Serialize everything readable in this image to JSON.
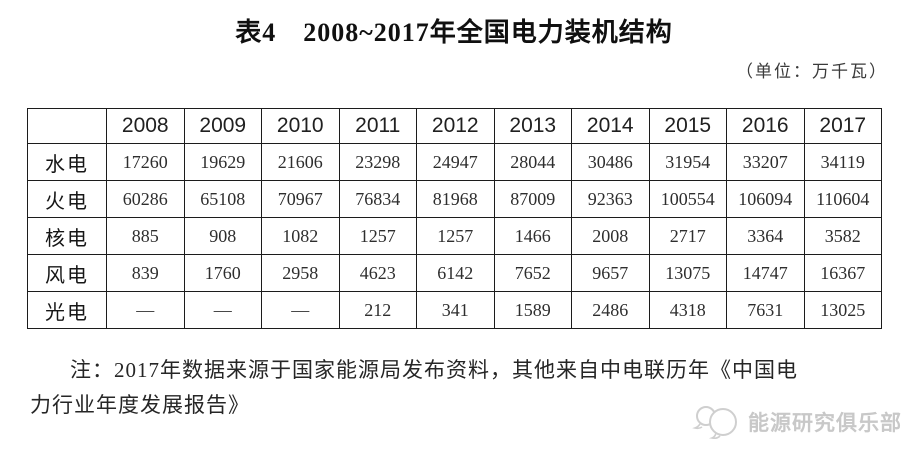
{
  "title": "表4　2008~2017年全国电力装机结构",
  "unit_note": "（单位：万千瓦）",
  "table": {
    "corner_label": "",
    "columns": [
      "2008",
      "2009",
      "2010",
      "2011",
      "2012",
      "2013",
      "2014",
      "2015",
      "2016",
      "2017"
    ],
    "rows": [
      {
        "label": "水电",
        "values": [
          "17260",
          "19629",
          "21606",
          "23298",
          "24947",
          "28044",
          "30486",
          "31954",
          "33207",
          "34119"
        ]
      },
      {
        "label": "火电",
        "values": [
          "60286",
          "65108",
          "70967",
          "76834",
          "81968",
          "87009",
          "92363",
          "100554",
          "106094",
          "110604"
        ]
      },
      {
        "label": "核电",
        "values": [
          "885",
          "908",
          "1082",
          "1257",
          "1257",
          "1466",
          "2008",
          "2717",
          "3364",
          "3582"
        ]
      },
      {
        "label": "风电",
        "values": [
          "839",
          "1760",
          "2958",
          "4623",
          "6142",
          "7652",
          "9657",
          "13075",
          "14747",
          "16367"
        ]
      },
      {
        "label": "光电",
        "values": [
          "—",
          "—",
          "—",
          "212",
          "341",
          "1589",
          "2486",
          "4318",
          "7631",
          "13025"
        ]
      }
    ]
  },
  "note": {
    "line1": "注：2017年数据来源于国家能源局发布资料，其他来自中电联历年《中国电",
    "line2": "力行业年度发展报告》"
  },
  "watermark": {
    "label": "能源研究俱乐部",
    "icon": "speech-bubbles-logo"
  },
  "colors": {
    "text": "#111111",
    "table_border": "#1c1c1c",
    "watermark_gray": "#c8c8c8"
  }
}
